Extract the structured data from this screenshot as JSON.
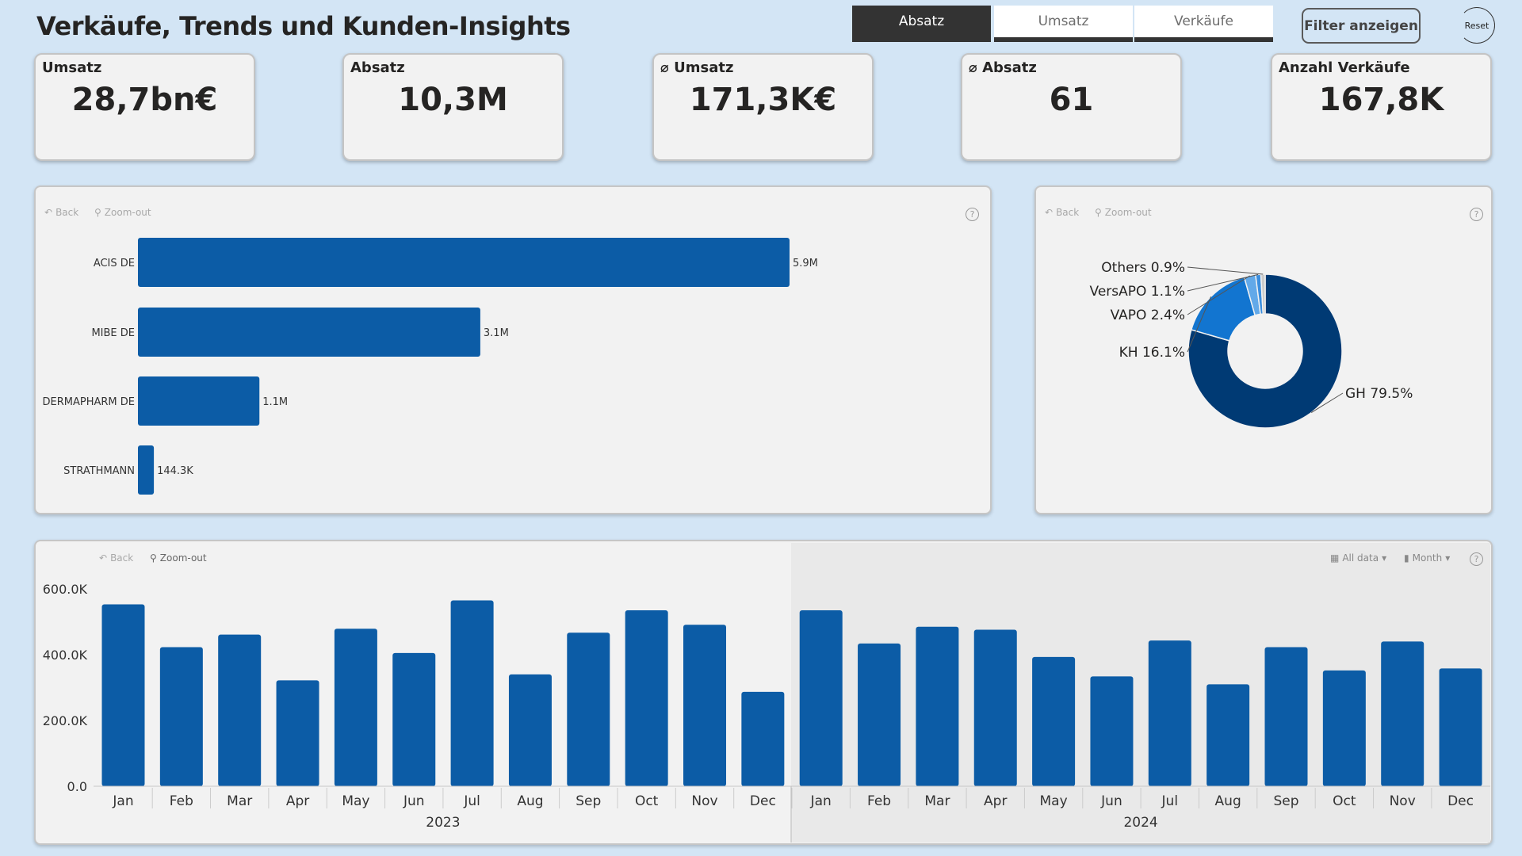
{
  "header": {
    "title": "Verkäufe, Trends und Kunden-Insights"
  },
  "tabs": [
    {
      "label": "Absatz",
      "active": true
    },
    {
      "label": "Umsatz",
      "active": false
    },
    {
      "label": "Verkäufe",
      "active": false
    }
  ],
  "filter_button": "Filter anzeigen",
  "reset_button": "Reset",
  "kpis": [
    {
      "label": "Umsatz",
      "value": "28,7bn€"
    },
    {
      "label": "Absatz",
      "value": "10,3M"
    },
    {
      "label": "⌀ Umsatz",
      "value": "171,3K€"
    },
    {
      "label": "⌀ Absatz",
      "value": "61"
    },
    {
      "label": "Anzahl Verkäufe",
      "value": "167,8K"
    }
  ],
  "toolbar": {
    "back": "Back",
    "zoom_out": "Zoom-out",
    "all_data": "All data",
    "month": "Month",
    "help": "?"
  },
  "colors": {
    "bar": "#0c5ca6",
    "background": "#d3e5f5",
    "gh": "#003a74",
    "kh": "#1275d0",
    "vapo": "#62a9e9",
    "versapo": "#3b8ede",
    "others": "#cccccc"
  },
  "chart_data": [
    {
      "type": "bar",
      "orientation": "horizontal",
      "categories": [
        "ACIS DE",
        "MIBE DE",
        "DERMAPHARM DE",
        "STRATHMANN"
      ],
      "values": [
        5900000,
        3100000,
        1100000,
        144300
      ],
      "labels": [
        "5.9M",
        "3.1M",
        "1.1M",
        "144.3K"
      ]
    },
    {
      "type": "pie",
      "donut": true,
      "categories": [
        "GH",
        "KH",
        "VAPO",
        "VersAPO",
        "Others"
      ],
      "values": [
        79.5,
        16.1,
        2.4,
        1.1,
        0.9
      ],
      "labels": [
        "GH 79.5%",
        "KH 16.1%",
        "VAPO 2.4%",
        "VersAPO 1.1%",
        "Others 0.9%"
      ]
    },
    {
      "type": "bar",
      "categories": [
        "Jan",
        "Feb",
        "Mar",
        "Apr",
        "May",
        "Jun",
        "Jul",
        "Aug",
        "Sep",
        "Oct",
        "Nov",
        "Dec",
        "Jan",
        "Feb",
        "Mar",
        "Apr",
        "May",
        "Jun",
        "Jul",
        "Aug",
        "Sep",
        "Oct",
        "Nov",
        "Dec"
      ],
      "groups": [
        {
          "label": "2023",
          "count": 12
        },
        {
          "label": "2024",
          "count": 12
        }
      ],
      "values": [
        553000,
        423000,
        461000,
        322000,
        479000,
        405000,
        565000,
        340000,
        467000,
        535000,
        491000,
        287000,
        535000,
        434000,
        485000,
        476000,
        393000,
        334000,
        443000,
        310000,
        423000,
        352000,
        440000,
        358000
      ],
      "yticks": [
        0,
        200000,
        400000,
        600000
      ],
      "ytick_labels": [
        "0.0",
        "200.0K",
        "400.0K",
        "600.0K"
      ],
      "ylim": [
        0,
        600000
      ]
    }
  ]
}
